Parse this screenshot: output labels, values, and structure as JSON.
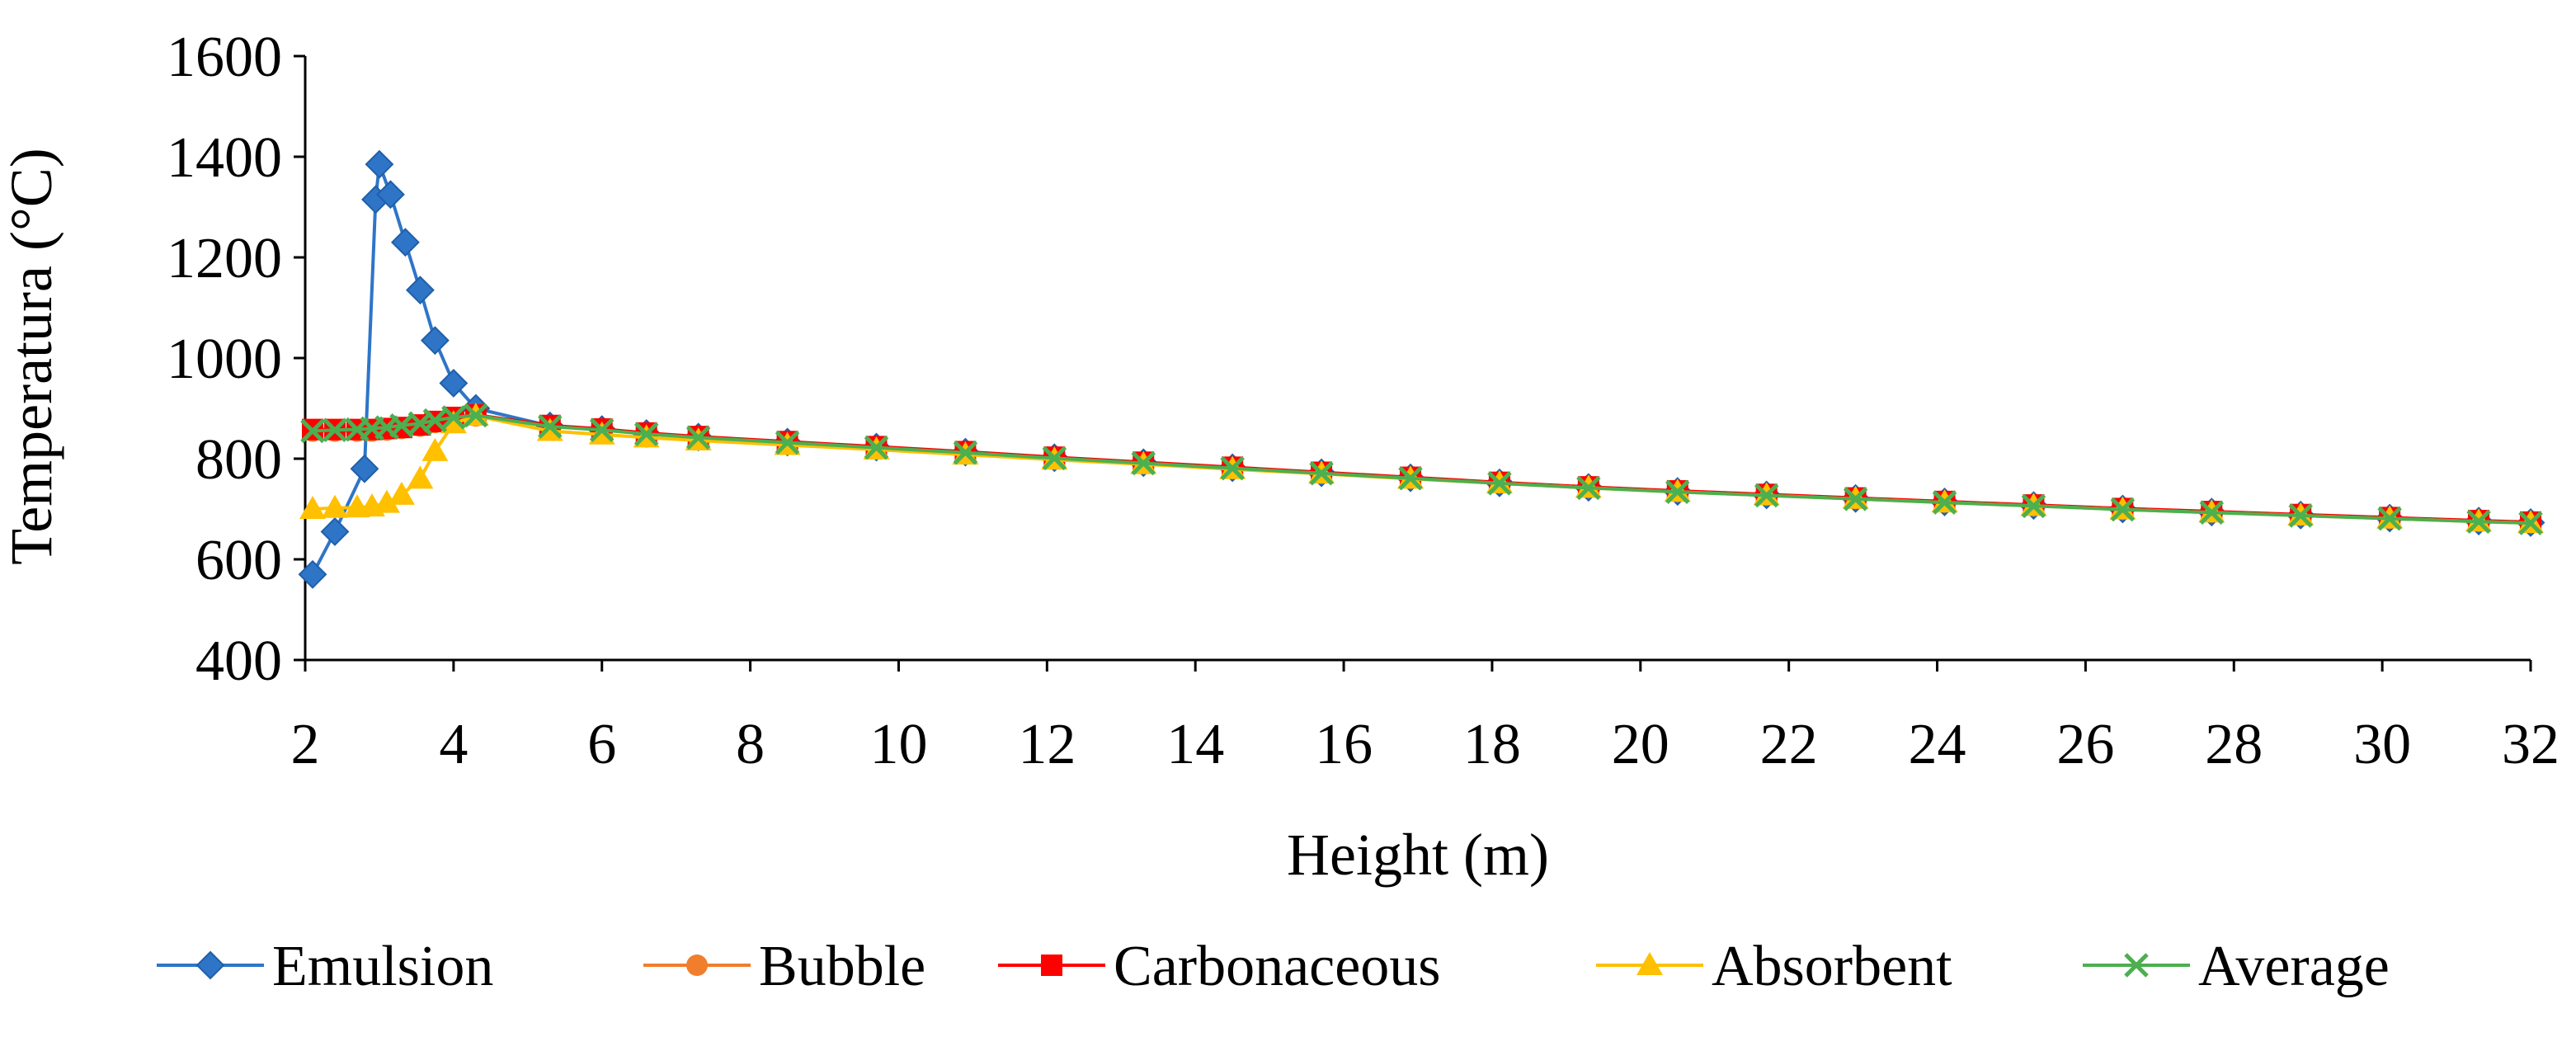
{
  "chart_data": {
    "type": "line",
    "title": "",
    "xlabel": "Height (m)",
    "ylabel": "Temperatura (°C)",
    "xlim": [
      2,
      32
    ],
    "ylim": [
      400,
      1600
    ],
    "x_ticks": [
      "2",
      "4",
      "6",
      "8",
      "10",
      "12",
      "14",
      "16",
      "18",
      "20",
      "22",
      "24",
      "26",
      "28",
      "30",
      "32"
    ],
    "y_ticks": [
      "400",
      "600",
      "800",
      "1000",
      "1200",
      "1400",
      "1600"
    ],
    "grid": false,
    "legend_position": "bottom",
    "series": [
      {
        "name": "Emulsion",
        "color": "#2E75C8",
        "marker": "diamond",
        "x": [
          2.1,
          2.4,
          2.8,
          2.95,
          3.0,
          3.15,
          3.35,
          3.55,
          3.75,
          4.0,
          4.3,
          5.3,
          6.0,
          6.6,
          7.3,
          8.5,
          9.7,
          10.9,
          12.1,
          13.3,
          14.5,
          15.7,
          16.9,
          18.1,
          19.3,
          20.5,
          21.7,
          22.9,
          24.1,
          25.3,
          26.5,
          27.7,
          28.9,
          30.1,
          31.3,
          32.0
        ],
        "y": [
          570,
          655,
          780,
          1315,
          1385,
          1325,
          1230,
          1135,
          1035,
          950,
          900,
          865,
          858,
          850,
          843,
          833,
          823,
          813,
          802,
          792,
          782,
          772,
          762,
          752,
          743,
          735,
          728,
          721,
          714,
          707,
          700,
          694,
          688,
          682,
          676,
          673
        ]
      },
      {
        "name": "Bubble",
        "color": "#F07E2D",
        "marker": "circle",
        "x": [
          2.1,
          2.4,
          2.7,
          2.9,
          3.1,
          3.3,
          3.55,
          3.75,
          4.0,
          4.3,
          5.3,
          6.0,
          6.6,
          7.3,
          8.5,
          9.7,
          10.9,
          12.1,
          13.3,
          14.5,
          15.7,
          16.9,
          18.1,
          19.3,
          20.5,
          21.7,
          22.9,
          24.1,
          25.3,
          26.5,
          27.7,
          28.9,
          30.1,
          31.3,
          32.0
        ],
        "y": [
          855,
          855,
          855,
          855,
          857,
          860,
          865,
          872,
          880,
          885,
          865,
          858,
          850,
          843,
          833,
          823,
          813,
          802,
          792,
          782,
          772,
          762,
          752,
          743,
          735,
          728,
          721,
          714,
          707,
          700,
          694,
          688,
          682,
          676,
          673
        ]
      },
      {
        "name": "Carbonaceous",
        "color": "#FF0000",
        "marker": "square",
        "x": [
          2.1,
          2.4,
          2.7,
          2.9,
          3.1,
          3.3,
          3.55,
          3.75,
          4.0,
          4.3,
          5.3,
          6.0,
          6.6,
          7.3,
          8.5,
          9.7,
          10.9,
          12.1,
          13.3,
          14.5,
          15.7,
          16.9,
          18.1,
          19.3,
          20.5,
          21.7,
          22.9,
          24.1,
          25.3,
          26.5,
          27.7,
          28.9,
          30.1,
          31.3,
          32.0
        ],
        "y": [
          858,
          858,
          858,
          858,
          860,
          862,
          867,
          874,
          882,
          887,
          866,
          859,
          851,
          844,
          834,
          824,
          814,
          803,
          793,
          783,
          773,
          763,
          753,
          744,
          736,
          729,
          722,
          715,
          708,
          701,
          695,
          689,
          683,
          677,
          674
        ]
      },
      {
        "name": "Absorbent",
        "color": "#FFC000",
        "marker": "triangle",
        "x": [
          2.1,
          2.4,
          2.7,
          2.9,
          3.1,
          3.3,
          3.55,
          3.75,
          4.0,
          4.3,
          5.3,
          6.0,
          6.6,
          7.3,
          8.5,
          9.7,
          10.9,
          12.1,
          13.3,
          14.5,
          15.7,
          16.9,
          18.1,
          19.3,
          20.5,
          21.7,
          22.9,
          24.1,
          25.3,
          26.5,
          27.7,
          28.9,
          30.1,
          31.3,
          32.0
        ],
        "y": [
          700,
          702,
          703,
          705,
          712,
          728,
          760,
          815,
          870,
          885,
          855,
          848,
          842,
          836,
          827,
          818,
          808,
          798,
          789,
          779,
          770,
          760,
          751,
          742,
          734,
          727,
          720,
          713,
          706,
          699,
          693,
          687,
          681,
          675,
          672
        ]
      },
      {
        "name": "Average",
        "color": "#4CAF50",
        "marker": "x",
        "x": [
          2.1,
          2.4,
          2.7,
          2.9,
          3.1,
          3.3,
          3.55,
          3.75,
          4.0,
          4.3,
          5.3,
          6.0,
          6.6,
          7.3,
          8.5,
          9.7,
          10.9,
          12.1,
          13.3,
          14.5,
          15.7,
          16.9,
          18.1,
          19.3,
          20.5,
          21.7,
          22.9,
          24.1,
          25.3,
          26.5,
          27.7,
          28.9,
          30.1,
          31.3,
          32.0
        ],
        "y": [
          855,
          857,
          858,
          860,
          862,
          866,
          870,
          876,
          882,
          886,
          864,
          857,
          849,
          842,
          832,
          822,
          812,
          801,
          791,
          781,
          771,
          761,
          751,
          742,
          734,
          727,
          720,
          713,
          706,
          699,
          693,
          687,
          681,
          675,
          672
        ]
      }
    ]
  }
}
